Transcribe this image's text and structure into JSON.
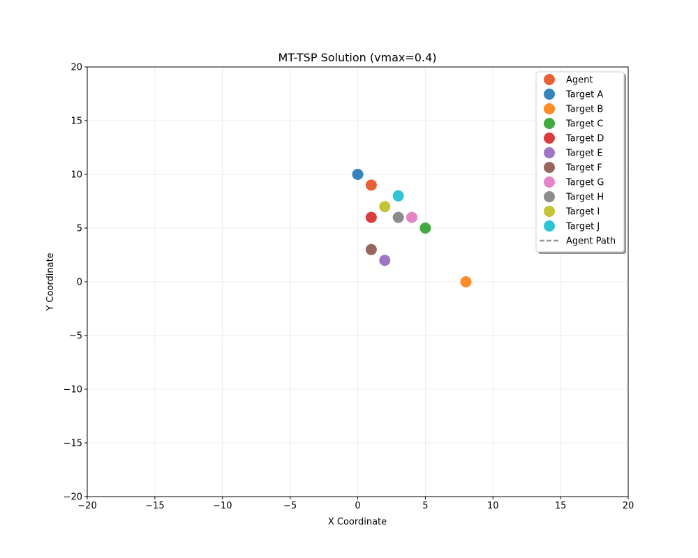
{
  "chart_data": {
    "type": "scatter",
    "title": "MT-TSP Solution (vmax=0.4)",
    "xlabel": "X Coordinate",
    "ylabel": "Y Coordinate",
    "xlim": [
      -20,
      20
    ],
    "ylim": [
      -20,
      20
    ],
    "xticks": [
      -20,
      -15,
      -10,
      -5,
      0,
      5,
      10,
      15,
      20
    ],
    "yticks": [
      -20,
      -15,
      -10,
      -5,
      0,
      5,
      10,
      15,
      20
    ],
    "xtick_labels": [
      "−20",
      "−15",
      "−10",
      "−5",
      "0",
      "5",
      "10",
      "15",
      "20"
    ],
    "ytick_labels": [
      "−20",
      "−15",
      "−10",
      "−5",
      "0",
      "5",
      "10",
      "15",
      "20"
    ],
    "grid": true,
    "legend_position": "top-right",
    "series": [
      {
        "name": "Agent",
        "color": "#e6501e",
        "x": 1,
        "y": 9
      },
      {
        "name": "Target A",
        "color": "#1f77b4",
        "x": 0,
        "y": 10
      },
      {
        "name": "Target B",
        "color": "#ff7f0e",
        "x": 8,
        "y": 0
      },
      {
        "name": "Target C",
        "color": "#2ca02c",
        "x": 5,
        "y": 5
      },
      {
        "name": "Target D",
        "color": "#d62728",
        "x": 1,
        "y": 6
      },
      {
        "name": "Target E",
        "color": "#9467bd",
        "x": 2,
        "y": 2
      },
      {
        "name": "Target F",
        "color": "#8c564b",
        "x": 1,
        "y": 3
      },
      {
        "name": "Target G",
        "color": "#e377c2",
        "x": 4,
        "y": 6
      },
      {
        "name": "Target H",
        "color": "#7f7f7f",
        "x": 3,
        "y": 6
      },
      {
        "name": "Target I",
        "color": "#bcbd22",
        "x": 2,
        "y": 7
      },
      {
        "name": "Target J",
        "color": "#17becf",
        "x": 3,
        "y": 8
      }
    ],
    "path": {
      "name": "Agent Path",
      "color": "#999999",
      "style": "dashed"
    }
  }
}
